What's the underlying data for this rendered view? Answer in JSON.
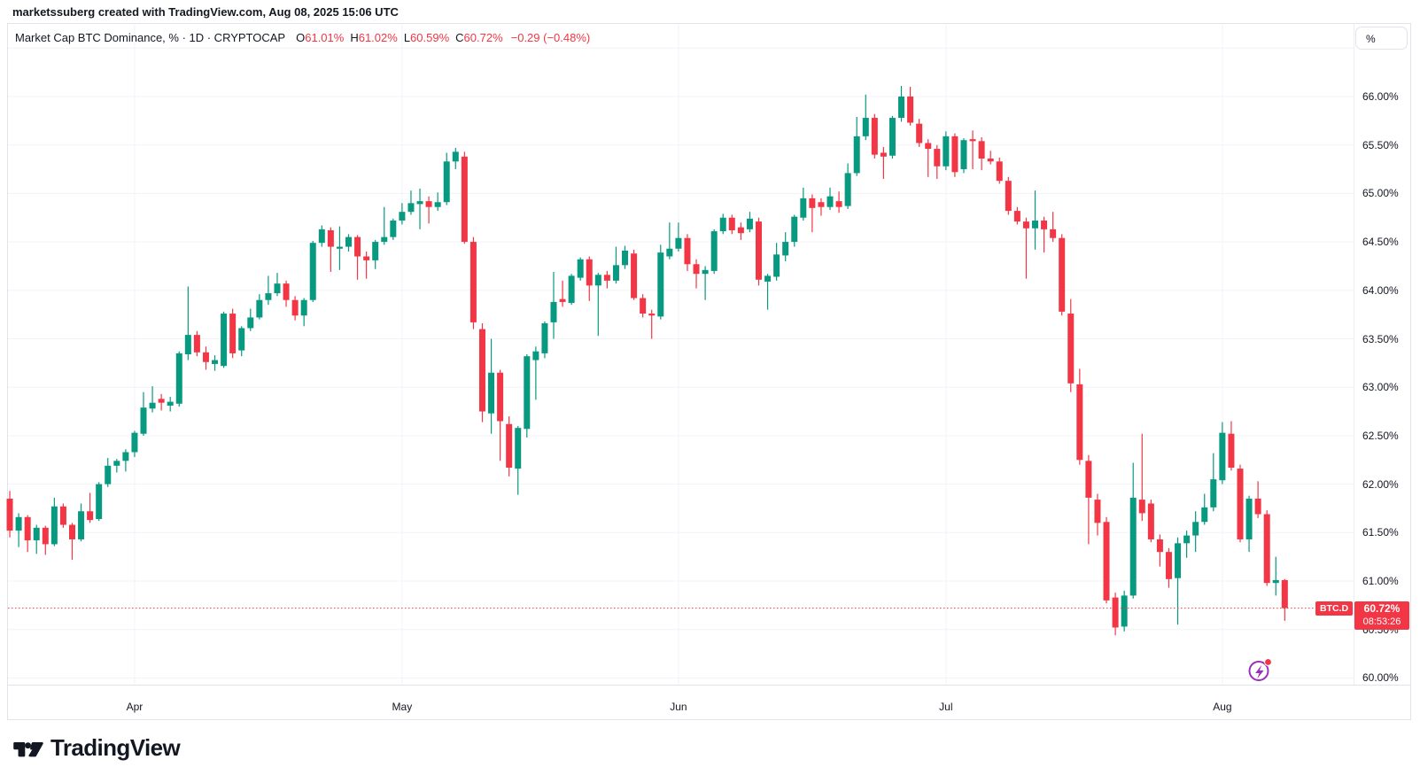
{
  "attribution": {
    "text": "marketssuberg created with TradingView.com, Aug 08, 2025 15:06 UTC"
  },
  "legend": {
    "title": "Market Cap BTC Dominance, % · 1D · CRYPTOCAP",
    "ohlc": [
      {
        "label": "O",
        "value": "61.01%"
      },
      {
        "label": "H",
        "value": "61.02%"
      },
      {
        "label": "L",
        "value": "60.59%"
      },
      {
        "label": "C",
        "value": "60.72%"
      }
    ],
    "change": "−0.29 (−0.48%)"
  },
  "price_axis": {
    "unit_button": "%",
    "ticks": [
      "66.00%",
      "65.50%",
      "65.00%",
      "64.50%",
      "64.00%",
      "63.50%",
      "63.00%",
      "62.50%",
      "62.00%",
      "61.50%",
      "61.00%",
      "60.50%",
      "60.00%"
    ],
    "last_price": {
      "symbol_tag": "BTC.D",
      "price": "60.72%",
      "countdown": "08:53:26",
      "value": 60.72
    }
  },
  "time_axis": {
    "ticks": [
      "Apr",
      "May",
      "Jun",
      "Jul",
      "Aug"
    ]
  },
  "footer": {
    "brand": "TradingView"
  },
  "colors": {
    "up": "#089981",
    "down": "#f23645",
    "text": "#131722",
    "grid": "#f0f3fa",
    "border": "#e0e3eb",
    "accent_purple": "#9b2eba",
    "badge_red": "#f23645"
  },
  "chart_data": {
    "type": "candlestick",
    "title": "Market Cap BTC Dominance, % · 1D · CRYPTOCAP",
    "y_unit": "%",
    "ylim": [
      60.0,
      66.5
    ],
    "y_tick_step": 0.5,
    "grid": true,
    "x_ticks": [
      "Apr",
      "May",
      "Jun",
      "Jul",
      "Aug"
    ],
    "last_close": 60.72,
    "columns": [
      "date",
      "open",
      "high",
      "low",
      "close"
    ],
    "rows": [
      [
        "2025-03-18",
        61.85,
        61.93,
        61.45,
        61.52
      ],
      [
        "2025-03-19",
        61.52,
        61.7,
        61.35,
        61.66
      ],
      [
        "2025-03-20",
        61.66,
        61.68,
        61.3,
        61.42
      ],
      [
        "2025-03-21",
        61.42,
        61.58,
        61.28,
        61.55
      ],
      [
        "2025-03-22",
        61.55,
        61.57,
        61.27,
        61.38
      ],
      [
        "2025-03-23",
        61.38,
        61.86,
        61.36,
        61.77
      ],
      [
        "2025-03-24",
        61.77,
        61.8,
        61.55,
        61.58
      ],
      [
        "2025-03-25",
        61.58,
        61.6,
        61.22,
        61.43
      ],
      [
        "2025-03-26",
        61.43,
        61.8,
        61.41,
        61.72
      ],
      [
        "2025-03-27",
        61.72,
        61.91,
        61.6,
        61.63
      ],
      [
        "2025-03-28",
        61.64,
        62.02,
        61.62,
        62.0
      ],
      [
        "2025-03-29",
        62.0,
        62.27,
        61.97,
        62.19
      ],
      [
        "2025-03-30",
        62.19,
        62.26,
        62.12,
        62.24
      ],
      [
        "2025-03-31",
        62.24,
        62.36,
        62.13,
        62.33
      ],
      [
        "2025-04-01",
        62.33,
        62.55,
        62.28,
        62.53
      ],
      [
        "2025-04-02",
        62.52,
        62.95,
        62.5,
        62.79
      ],
      [
        "2025-04-03",
        62.78,
        63.01,
        62.74,
        62.84
      ],
      [
        "2025-04-04",
        62.88,
        62.93,
        62.76,
        62.84
      ],
      [
        "2025-04-05",
        62.81,
        62.9,
        62.75,
        62.85
      ],
      [
        "2025-04-06",
        62.83,
        63.37,
        62.8,
        63.35
      ],
      [
        "2025-04-07",
        63.34,
        64.04,
        63.28,
        63.54
      ],
      [
        "2025-04-08",
        63.54,
        63.58,
        63.32,
        63.36
      ],
      [
        "2025-04-09",
        63.36,
        63.42,
        63.18,
        63.26
      ],
      [
        "2025-04-10",
        63.24,
        63.33,
        63.17,
        63.28
      ],
      [
        "2025-04-11",
        63.22,
        63.78,
        63.2,
        63.76
      ],
      [
        "2025-04-12",
        63.76,
        63.81,
        63.3,
        63.35
      ],
      [
        "2025-04-13",
        63.38,
        63.63,
        63.32,
        63.61
      ],
      [
        "2025-04-14",
        63.61,
        63.81,
        63.58,
        63.72
      ],
      [
        "2025-04-15",
        63.72,
        63.96,
        63.7,
        63.9
      ],
      [
        "2025-04-16",
        63.9,
        64.15,
        63.85,
        63.97
      ],
      [
        "2025-04-17",
        63.97,
        64.18,
        63.94,
        64.07
      ],
      [
        "2025-04-18",
        64.07,
        64.1,
        63.83,
        63.9
      ],
      [
        "2025-04-19",
        63.9,
        63.94,
        63.69,
        63.74
      ],
      [
        "2025-04-20",
        63.74,
        63.92,
        63.63,
        63.9
      ],
      [
        "2025-04-21",
        63.9,
        64.51,
        63.88,
        64.49
      ],
      [
        "2025-04-22",
        64.49,
        64.67,
        64.45,
        64.63
      ],
      [
        "2025-04-23",
        64.62,
        64.65,
        64.19,
        64.45
      ],
      [
        "2025-04-24",
        64.43,
        64.66,
        64.21,
        64.45
      ],
      [
        "2025-04-25",
        64.45,
        64.58,
        64.4,
        64.55
      ],
      [
        "2025-04-26",
        64.55,
        64.57,
        64.11,
        64.35
      ],
      [
        "2025-04-27",
        64.35,
        64.4,
        64.12,
        64.31
      ],
      [
        "2025-04-28",
        64.31,
        64.52,
        64.22,
        64.5
      ],
      [
        "2025-04-29",
        64.5,
        64.86,
        64.47,
        64.55
      ],
      [
        "2025-04-30",
        64.55,
        64.74,
        64.52,
        64.72
      ],
      [
        "2025-05-01",
        64.72,
        64.9,
        64.68,
        64.81
      ],
      [
        "2025-05-02",
        64.81,
        65.03,
        64.78,
        64.9
      ],
      [
        "2025-05-03",
        64.89,
        65.05,
        64.63,
        64.92
      ],
      [
        "2025-05-04",
        64.92,
        64.97,
        64.69,
        64.86
      ],
      [
        "2025-05-05",
        64.86,
        65.01,
        64.82,
        64.91
      ],
      [
        "2025-05-06",
        64.91,
        65.42,
        64.88,
        65.33
      ],
      [
        "2025-05-07",
        65.33,
        65.47,
        65.25,
        65.43
      ],
      [
        "2025-05-08",
        65.38,
        65.43,
        64.48,
        64.5
      ],
      [
        "2025-05-09",
        64.5,
        64.55,
        63.6,
        63.67
      ],
      [
        "2025-05-10",
        63.6,
        63.66,
        62.64,
        62.75
      ],
      [
        "2025-05-11",
        62.73,
        63.5,
        62.52,
        63.15
      ],
      [
        "2025-05-12",
        63.15,
        63.18,
        62.24,
        62.65
      ],
      [
        "2025-05-13",
        62.62,
        62.7,
        62.08,
        62.17
      ],
      [
        "2025-05-14",
        62.16,
        62.6,
        61.89,
        62.58
      ],
      [
        "2025-05-15",
        62.57,
        63.34,
        62.48,
        63.32
      ],
      [
        "2025-05-16",
        63.28,
        63.42,
        62.87,
        63.37
      ],
      [
        "2025-05-17",
        63.35,
        63.68,
        63.3,
        63.66
      ],
      [
        "2025-05-18",
        63.67,
        64.19,
        63.5,
        63.88
      ],
      [
        "2025-05-19",
        63.91,
        64.1,
        63.83,
        63.88
      ],
      [
        "2025-05-20",
        63.87,
        64.17,
        63.85,
        64.15
      ],
      [
        "2025-05-21",
        64.13,
        64.34,
        64.1,
        64.32
      ],
      [
        "2025-05-22",
        64.32,
        64.35,
        63.89,
        64.05
      ],
      [
        "2025-05-23",
        64.05,
        64.18,
        63.53,
        64.16
      ],
      [
        "2025-05-24",
        64.16,
        64.2,
        64.02,
        64.1
      ],
      [
        "2025-05-25",
        64.1,
        64.45,
        64.07,
        64.26
      ],
      [
        "2025-05-26",
        64.26,
        64.46,
        64.22,
        64.41
      ],
      [
        "2025-05-27",
        64.38,
        64.42,
        63.9,
        63.92
      ],
      [
        "2025-05-28",
        63.92,
        63.96,
        63.72,
        63.76
      ],
      [
        "2025-05-29",
        63.76,
        63.8,
        63.5,
        63.74
      ],
      [
        "2025-05-30",
        63.73,
        64.47,
        63.7,
        64.39
      ],
      [
        "2025-05-31",
        64.35,
        64.7,
        64.32,
        64.43
      ],
      [
        "2025-06-01",
        64.43,
        64.7,
        64.4,
        64.54
      ],
      [
        "2025-06-02",
        64.54,
        64.58,
        64.2,
        64.27
      ],
      [
        "2025-06-03",
        64.27,
        64.32,
        64.02,
        64.17
      ],
      [
        "2025-06-04",
        64.17,
        64.25,
        63.9,
        64.21
      ],
      [
        "2025-06-05",
        64.2,
        64.63,
        64.17,
        64.61
      ],
      [
        "2025-06-06",
        64.61,
        64.79,
        64.58,
        64.75
      ],
      [
        "2025-06-07",
        64.75,
        64.78,
        64.58,
        64.62
      ],
      [
        "2025-06-08",
        64.65,
        64.7,
        64.52,
        64.59
      ],
      [
        "2025-06-09",
        64.63,
        64.81,
        64.6,
        64.74
      ],
      [
        "2025-06-10",
        64.71,
        64.75,
        64.05,
        64.11
      ],
      [
        "2025-06-11",
        64.09,
        64.17,
        63.8,
        64.15
      ],
      [
        "2025-06-12",
        64.14,
        64.49,
        64.1,
        64.37
      ],
      [
        "2025-06-13",
        64.36,
        64.6,
        64.3,
        64.5
      ],
      [
        "2025-06-14",
        64.5,
        64.78,
        64.45,
        64.76
      ],
      [
        "2025-06-15",
        64.75,
        65.06,
        64.72,
        64.95
      ],
      [
        "2025-06-16",
        64.95,
        64.99,
        64.6,
        64.85
      ],
      [
        "2025-06-17",
        64.91,
        64.95,
        64.77,
        64.86
      ],
      [
        "2025-06-18",
        64.86,
        65.06,
        64.83,
        64.97
      ],
      [
        "2025-06-19",
        64.92,
        65.02,
        64.8,
        64.86
      ],
      [
        "2025-06-20",
        64.87,
        65.31,
        64.84,
        65.21
      ],
      [
        "2025-06-21",
        65.21,
        65.79,
        65.18,
        65.59
      ],
      [
        "2025-06-22",
        65.59,
        66.02,
        65.55,
        65.78
      ],
      [
        "2025-06-23",
        65.78,
        65.82,
        65.36,
        65.4
      ],
      [
        "2025-06-24",
        65.42,
        65.48,
        65.15,
        65.38
      ],
      [
        "2025-06-25",
        65.39,
        65.8,
        65.36,
        65.78
      ],
      [
        "2025-06-26",
        65.78,
        66.11,
        65.74,
        66.0
      ],
      [
        "2025-06-27",
        66.0,
        66.1,
        65.7,
        65.73
      ],
      [
        "2025-06-28",
        65.72,
        65.77,
        65.48,
        65.52
      ],
      [
        "2025-06-29",
        65.52,
        65.56,
        65.17,
        65.46
      ],
      [
        "2025-06-30",
        65.46,
        65.5,
        65.15,
        65.28
      ],
      [
        "2025-07-01",
        65.28,
        65.64,
        65.24,
        65.59
      ],
      [
        "2025-07-02",
        65.59,
        65.62,
        65.17,
        65.22
      ],
      [
        "2025-07-03",
        65.25,
        65.57,
        65.21,
        65.55
      ],
      [
        "2025-07-04",
        65.56,
        65.65,
        65.25,
        65.54
      ],
      [
        "2025-07-05",
        65.54,
        65.58,
        65.24,
        65.36
      ],
      [
        "2025-07-06",
        65.36,
        65.44,
        65.3,
        65.33
      ],
      [
        "2025-07-07",
        65.33,
        65.37,
        65.1,
        65.13
      ],
      [
        "2025-07-08",
        65.13,
        65.17,
        64.78,
        64.82
      ],
      [
        "2025-07-09",
        64.82,
        64.86,
        64.68,
        64.71
      ],
      [
        "2025-07-10",
        64.71,
        64.75,
        64.12,
        64.64
      ],
      [
        "2025-07-11",
        64.64,
        65.03,
        64.42,
        64.72
      ],
      [
        "2025-07-12",
        64.72,
        64.76,
        64.39,
        64.63
      ],
      [
        "2025-07-13",
        64.63,
        64.81,
        64.5,
        64.54
      ],
      [
        "2025-07-14",
        64.54,
        64.58,
        63.74,
        63.78
      ],
      [
        "2025-07-15",
        63.76,
        63.91,
        62.95,
        63.04
      ],
      [
        "2025-07-16",
        63.03,
        63.19,
        62.2,
        62.25
      ],
      [
        "2025-07-17",
        62.24,
        62.3,
        61.38,
        61.86
      ],
      [
        "2025-07-18",
        61.84,
        61.9,
        61.47,
        61.6
      ],
      [
        "2025-07-19",
        61.61,
        61.66,
        60.77,
        60.8
      ],
      [
        "2025-07-20",
        60.83,
        60.88,
        60.44,
        60.52
      ],
      [
        "2025-07-21",
        60.53,
        60.9,
        60.48,
        60.85
      ],
      [
        "2025-07-22",
        60.85,
        62.22,
        60.82,
        61.86
      ],
      [
        "2025-07-23",
        61.84,
        62.52,
        61.62,
        61.7
      ],
      [
        "2025-07-24",
        61.8,
        61.84,
        61.4,
        61.43
      ],
      [
        "2025-07-25",
        61.43,
        61.48,
        61.15,
        61.3
      ],
      [
        "2025-07-26",
        61.3,
        61.34,
        60.93,
        61.02
      ],
      [
        "2025-07-27",
        61.03,
        61.45,
        60.55,
        61.39
      ],
      [
        "2025-07-28",
        61.39,
        61.52,
        61.24,
        61.47
      ],
      [
        "2025-07-29",
        61.47,
        61.72,
        61.3,
        61.61
      ],
      [
        "2025-07-30",
        61.61,
        61.9,
        61.58,
        61.76
      ],
      [
        "2025-07-31",
        61.76,
        62.32,
        61.72,
        62.05
      ],
      [
        "2025-08-01",
        62.04,
        62.64,
        62.0,
        62.53
      ],
      [
        "2025-08-02",
        62.52,
        62.65,
        62.14,
        62.17
      ],
      [
        "2025-08-03",
        62.16,
        62.2,
        61.4,
        61.43
      ],
      [
        "2025-08-04",
        61.43,
        61.88,
        61.3,
        61.85
      ],
      [
        "2025-08-05",
        61.85,
        62.03,
        61.65,
        61.69
      ],
      [
        "2025-08-06",
        61.69,
        61.73,
        60.95,
        60.98
      ],
      [
        "2025-08-07",
        60.98,
        61.25,
        60.85,
        61.01
      ],
      [
        "2025-08-08",
        61.01,
        61.02,
        60.59,
        60.72
      ]
    ]
  }
}
